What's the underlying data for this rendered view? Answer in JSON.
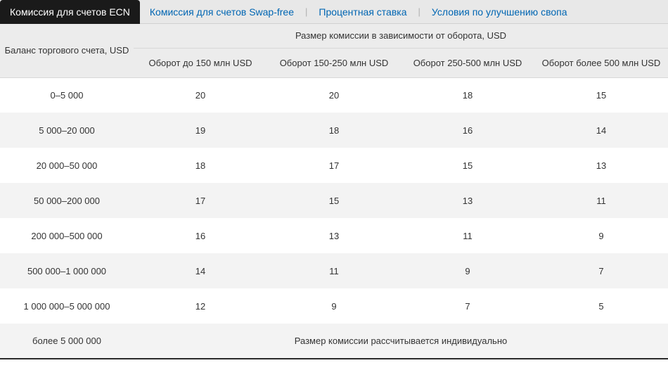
{
  "tabs": {
    "active": "Комиссия для счетов ECN",
    "links": [
      "Комиссия для счетов Swap-free",
      "Процентная ставка",
      "Условия по улучшению свопа"
    ]
  },
  "table": {
    "row_header": "Баланс торгового счета, USD",
    "group_header": "Размер комиссии в зависимости от оборота, USD",
    "columns": [
      "Оборот до 150 млн USD",
      "Оборот 150-250 млн USD",
      "Оборот 250-500 млн USD",
      "Оборот более 500 млн USD"
    ],
    "rows": [
      {
        "label": "0–5 000",
        "values": [
          "20",
          "20",
          "18",
          "15"
        ]
      },
      {
        "label": "5 000–20 000",
        "values": [
          "19",
          "18",
          "16",
          "14"
        ]
      },
      {
        "label": "20 000–50 000",
        "values": [
          "18",
          "17",
          "15",
          "13"
        ]
      },
      {
        "label": "50 000–200 000",
        "values": [
          "17",
          "15",
          "13",
          "11"
        ]
      },
      {
        "label": "200 000–500 000",
        "values": [
          "16",
          "13",
          "11",
          "9"
        ]
      },
      {
        "label": "500 000–1 000 000",
        "values": [
          "14",
          "11",
          "9",
          "7"
        ]
      },
      {
        "label": "1 000 000–5 000 000",
        "values": [
          "12",
          "9",
          "7",
          "5"
        ]
      }
    ],
    "footer_row": {
      "label": "более 5 000 000",
      "note": "Размер комиссии рассчитывается индивидуально"
    }
  },
  "colors": {
    "tab_active_bg": "#1a1a1a",
    "tab_link": "#0066b3",
    "header_bg": "#ececec",
    "row_odd_bg": "#ffffff",
    "row_even_bg": "#f3f3f3",
    "border": "#d8d8d8"
  }
}
